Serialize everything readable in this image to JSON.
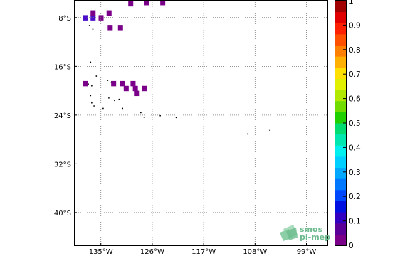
{
  "map": {
    "lat_labels": [
      {
        "lat": -8,
        "label": "8°S"
      },
      {
        "lat": -16,
        "label": "16°S"
      },
      {
        "lat": -24,
        "label": "24°S"
      },
      {
        "lat": -32,
        "label": "32°S"
      },
      {
        "lat": -40,
        "label": "40°S"
      }
    ],
    "lon_labels": [
      {
        "lon": -135,
        "label": "135°W"
      },
      {
        "lon": -126,
        "label": "126°W"
      },
      {
        "lon": -117,
        "label": "117°W"
      },
      {
        "lon": -108,
        "label": "108°W"
      },
      {
        "lon": -99,
        "label": "99°W"
      }
    ],
    "lat_range": [
      -45.5,
      -5.1
    ],
    "lon_range": [
      -139.7,
      -95.2
    ],
    "grid": "dotted",
    "cell_colors": {
      "purple": "#7a008a",
      "indigo": "#4b0ccc"
    },
    "data_cells": [
      {
        "lon": -137.8,
        "lat": -8.0,
        "color": "indigo"
      },
      {
        "lon": -136.4,
        "lat": -8.0,
        "color": "indigo"
      },
      {
        "lon": -135.0,
        "lat": -8.0,
        "color": "purple"
      },
      {
        "lon": -136.4,
        "lat": -7.2,
        "color": "purple"
      },
      {
        "lon": -133.6,
        "lat": -7.2,
        "color": "purple"
      },
      {
        "lon": -129.8,
        "lat": -5.7,
        "color": "purple"
      },
      {
        "lon": -127.0,
        "lat": -5.5,
        "color": "purple"
      },
      {
        "lon": -124.2,
        "lat": -5.5,
        "color": "purple"
      },
      {
        "lon": -133.4,
        "lat": -9.6,
        "color": "purple"
      },
      {
        "lon": -131.6,
        "lat": -9.6,
        "color": "purple"
      },
      {
        "lon": -137.8,
        "lat": -18.8,
        "color": "purple"
      },
      {
        "lon": -132.8,
        "lat": -18.8,
        "color": "purple"
      },
      {
        "lon": -131.2,
        "lat": -18.8,
        "color": "purple"
      },
      {
        "lon": -129.4,
        "lat": -18.8,
        "color": "purple"
      },
      {
        "lon": -130.6,
        "lat": -19.6,
        "color": "purple"
      },
      {
        "lon": -129.0,
        "lat": -19.6,
        "color": "purple"
      },
      {
        "lon": -127.4,
        "lat": -19.6,
        "color": "purple"
      },
      {
        "lon": -128.8,
        "lat": -20.4,
        "color": "purple"
      }
    ],
    "islands": [
      {
        "lon": -137.0,
        "lat": -9.3
      },
      {
        "lon": -136.4,
        "lat": -9.9
      },
      {
        "lon": -136.8,
        "lat": -15.3
      },
      {
        "lon": -135.8,
        "lat": -17.6
      },
      {
        "lon": -133.8,
        "lat": -18.3
      },
      {
        "lon": -133.2,
        "lat": -18.6
      },
      {
        "lon": -137.2,
        "lat": -18.9
      },
      {
        "lon": -136.6,
        "lat": -19.2
      },
      {
        "lon": -136.8,
        "lat": -20.8
      },
      {
        "lon": -133.6,
        "lat": -21.2
      },
      {
        "lon": -132.6,
        "lat": -21.6
      },
      {
        "lon": -131.8,
        "lat": -21.4
      },
      {
        "lon": -136.6,
        "lat": -22.0
      },
      {
        "lon": -136.2,
        "lat": -22.5
      },
      {
        "lon": -134.6,
        "lat": -22.9
      },
      {
        "lon": -131.2,
        "lat": -22.9
      },
      {
        "lon": -128.0,
        "lat": -23.6
      },
      {
        "lon": -127.4,
        "lat": -24.4
      },
      {
        "lon": -124.6,
        "lat": -24.1
      },
      {
        "lon": -121.8,
        "lat": -24.4
      },
      {
        "lon": -109.3,
        "lat": -27.1
      },
      {
        "lon": -105.4,
        "lat": -26.5
      }
    ]
  },
  "colorbar": {
    "tick_labels": [
      "0",
      "0.1",
      "0.2",
      "0.3",
      "0.4",
      "0.5",
      "0.6",
      "0.7",
      "0.8",
      "0.9",
      "1"
    ],
    "range": [
      0,
      1
    ],
    "colors": [
      "#7a008a",
      "#5a0099",
      "#3200c0",
      "#0010e0",
      "#0048ff",
      "#0078ff",
      "#00a8ff",
      "#00d0ff",
      "#00f0f0",
      "#00e8b0",
      "#00dc70",
      "#20d000",
      "#70dc00",
      "#b0e800",
      "#e0f000",
      "#ffe000",
      "#ffb000",
      "#ff8000",
      "#ff5000",
      "#ff2000",
      "#e00000",
      "#a00000"
    ]
  },
  "logo": {
    "line1": "smos",
    "line2": "pi-mep",
    "color": "#6dbb8e"
  }
}
